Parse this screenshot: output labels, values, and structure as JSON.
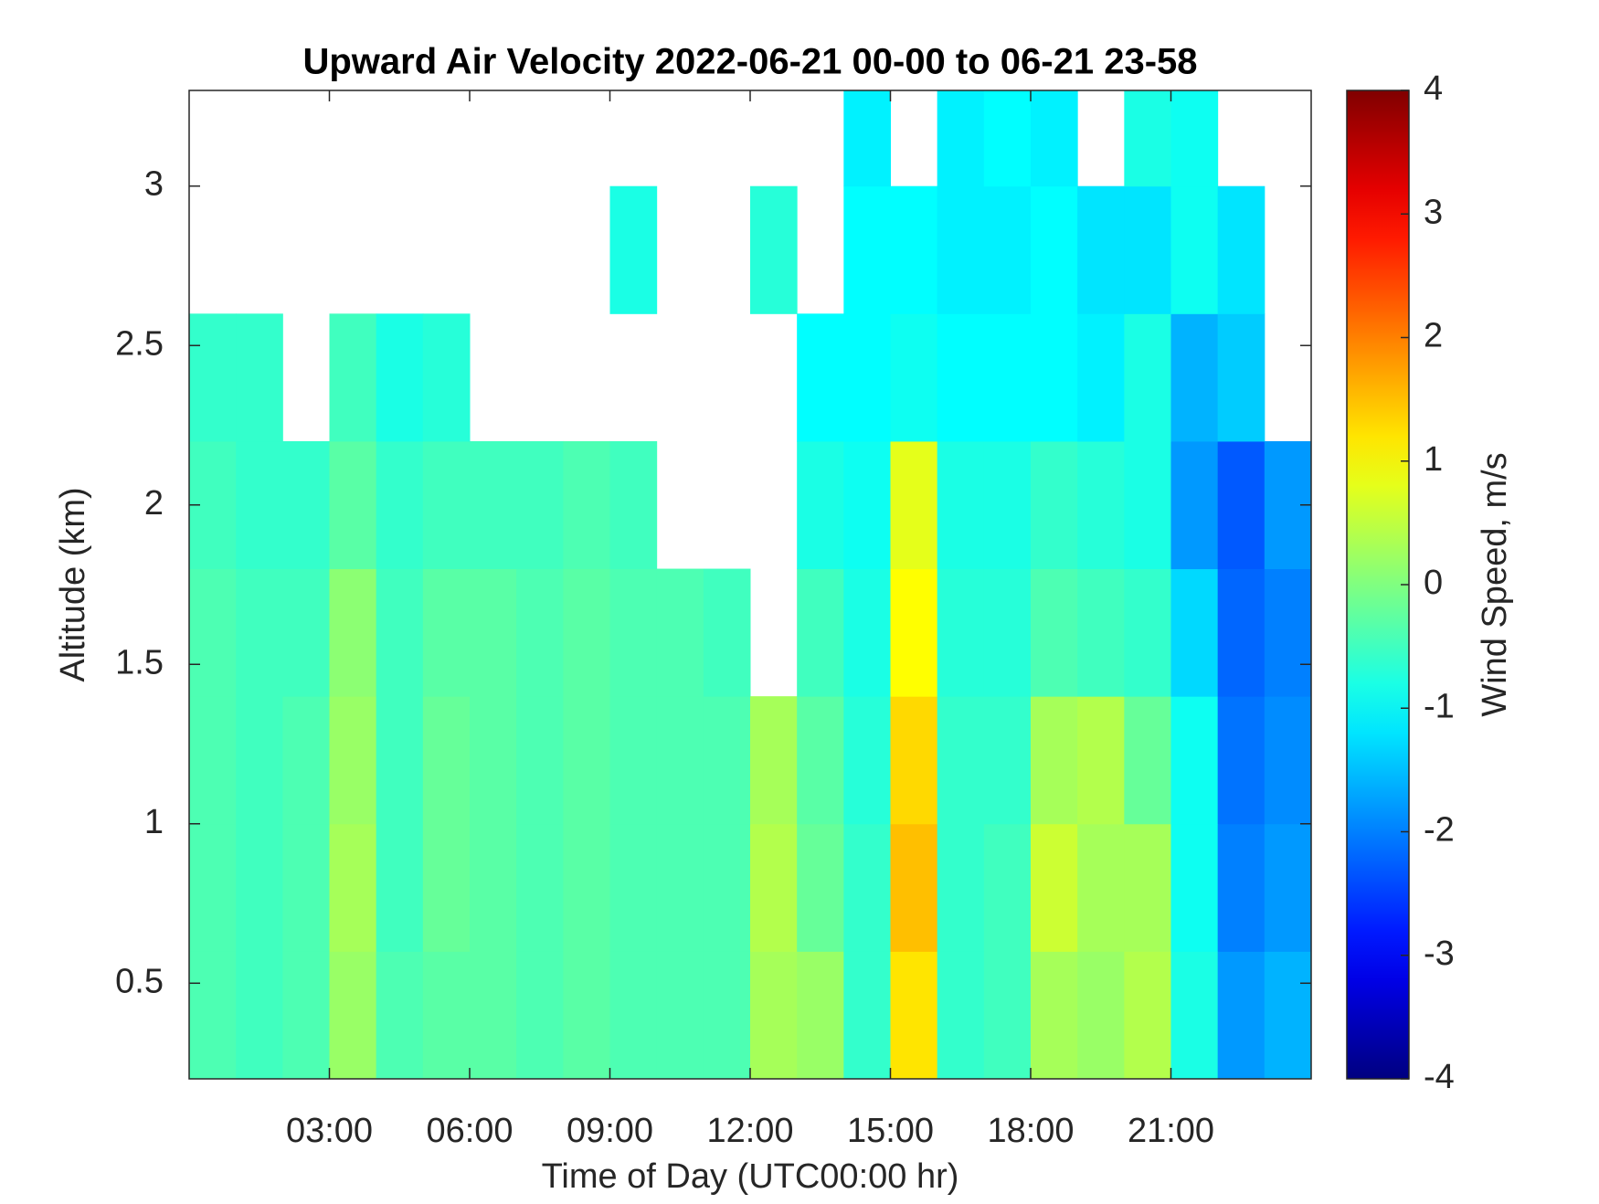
{
  "chart_data": {
    "type": "heatmap",
    "title": "Upward Air Velocity 2022-06-21 00-00 to 06-21 23-58",
    "x_label": "Time of Day (UTC00:00 hr)",
    "y_label": "Altitude (km)",
    "colorbar_label": "Wind Speed, m/s",
    "colormap": "jet",
    "xlim": [
      0,
      24
    ],
    "xticks": [
      {
        "value": 3,
        "label": "03:00"
      },
      {
        "value": 6,
        "label": "06:00"
      },
      {
        "value": 9,
        "label": "09:00"
      },
      {
        "value": 12,
        "label": "12:00"
      },
      {
        "value": 15,
        "label": "15:00"
      },
      {
        "value": 18,
        "label": "18:00"
      },
      {
        "value": 21,
        "label": "21:00"
      }
    ],
    "ylim": [
      0.2,
      3.3
    ],
    "yticks": [
      0.5,
      1,
      1.5,
      2,
      2.5,
      3
    ],
    "clim": [
      -4,
      4
    ],
    "cticks": [
      -4,
      -3,
      -2,
      -1,
      0,
      1,
      2,
      3,
      4
    ],
    "x_bins": [
      0,
      1,
      2,
      3,
      4,
      5,
      6,
      7,
      8,
      9,
      10,
      11,
      12,
      13,
      14,
      15,
      16,
      17,
      18,
      19,
      20,
      21,
      22,
      23,
      24
    ],
    "y_bins": [
      0.2,
      0.6,
      1.0,
      1.4,
      1.8,
      2.2,
      2.6,
      3.0,
      3.3
    ],
    "z": [
      [
        -0.4,
        -0.5,
        -0.4,
        0.2,
        -0.4,
        -0.3,
        -0.3,
        -0.4,
        -0.3,
        -0.4,
        -0.4,
        -0.4,
        0.3,
        0.2,
        -0.6,
        1.2,
        -0.6,
        -0.5,
        0.3,
        0.2,
        0.4,
        -0.8,
        -1.8,
        -1.6
      ],
      [
        -0.4,
        -0.5,
        -0.4,
        0.3,
        -0.5,
        -0.2,
        -0.3,
        -0.4,
        -0.3,
        -0.4,
        -0.4,
        -0.4,
        0.4,
        -0.2,
        -0.6,
        1.5,
        -0.6,
        -0.5,
        0.6,
        0.3,
        0.3,
        -0.9,
        -2.0,
        -1.8
      ],
      [
        -0.4,
        -0.5,
        -0.4,
        0.2,
        -0.5,
        -0.2,
        -0.3,
        -0.4,
        -0.3,
        -0.4,
        -0.4,
        -0.4,
        0.3,
        -0.3,
        -0.7,
        1.3,
        -0.6,
        -0.6,
        0.3,
        0.4,
        -0.2,
        -0.9,
        -2.1,
        -1.9
      ],
      [
        -0.4,
        -0.5,
        -0.5,
        0.1,
        -0.5,
        -0.3,
        -0.3,
        -0.4,
        -0.3,
        -0.4,
        -0.4,
        -0.5,
        null,
        -0.5,
        -0.8,
        1.0,
        -0.7,
        -0.7,
        -0.4,
        -0.5,
        -0.6,
        -1.3,
        -2.2,
        -2.0
      ],
      [
        -0.5,
        -0.6,
        -0.6,
        -0.3,
        -0.6,
        -0.5,
        -0.5,
        -0.5,
        -0.4,
        -0.5,
        null,
        null,
        null,
        -0.8,
        -0.9,
        0.8,
        -0.8,
        -0.8,
        -0.6,
        -0.7,
        -0.8,
        -1.8,
        -2.3,
        -1.8
      ],
      [
        -0.6,
        -0.6,
        null,
        -0.5,
        -0.8,
        -0.7,
        null,
        null,
        null,
        null,
        null,
        null,
        null,
        -1.0,
        -1.0,
        -0.9,
        -1.0,
        -1.0,
        -1.0,
        -1.1,
        -0.8,
        -1.6,
        -1.4,
        null
      ],
      [
        null,
        null,
        null,
        null,
        null,
        null,
        null,
        null,
        null,
        -0.8,
        null,
        null,
        -0.7,
        null,
        -1.0,
        -1.0,
        -1.1,
        -1.1,
        -1.0,
        -1.2,
        -1.2,
        -0.9,
        -1.2,
        null
      ],
      [
        null,
        null,
        null,
        null,
        null,
        null,
        null,
        null,
        null,
        null,
        null,
        null,
        null,
        null,
        -1.1,
        null,
        -1.1,
        -1.0,
        -1.1,
        null,
        -0.8,
        -0.9,
        null,
        null
      ]
    ]
  }
}
